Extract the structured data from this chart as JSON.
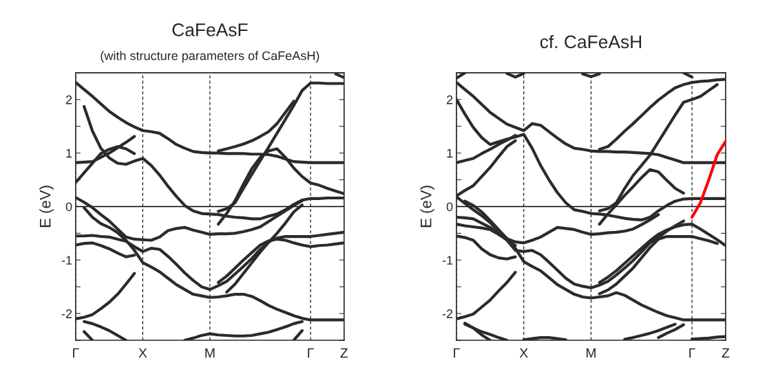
{
  "chart_data": [
    {
      "type": "line",
      "title": "CaFeAsF",
      "subtitle": "(with structure parameters of CaFeAsH)",
      "ylabel": "E (eV)",
      "categories": [
        "Γ",
        null,
        null,
        null,
        null,
        null,
        null,
        null,
        "X",
        null,
        null,
        null,
        null,
        null,
        null,
        null,
        "M",
        null,
        null,
        null,
        null,
        null,
        null,
        null,
        null,
        null,
        null,
        null,
        "Γ",
        null,
        null,
        null,
        "Z"
      ],
      "ylim": [
        -2.5,
        2.5
      ],
      "yticks": [
        {
          "value": -2.5,
          "label": null
        },
        -2,
        {
          "value": -1.5,
          "label": null
        },
        -1,
        {
          "value": -0.5,
          "label": null
        },
        0,
        {
          "value": 0.5,
          "label": null
        },
        1,
        {
          "value": 1.5,
          "label": null
        },
        2,
        {
          "value": 2.5,
          "label": null
        }
      ],
      "grid": "x",
      "ref_lines": [
        {
          "axis": "y",
          "value": 0,
          "line_style": "solid"
        }
      ],
      "series": [
        {
          "color": "#2b2b2b",
          "values": [
            2.32,
            2.19,
            2.06,
            1.92,
            1.78,
            1.67,
            1.57,
            1.49,
            1.42,
            1.4,
            1.37,
            1.27,
            1.16,
            1.09,
            1.03,
            1.01,
            1.0,
            1.0,
            0.99,
            0.99,
            0.99,
            0.98,
            0.98,
            0.97,
            0.94,
            0.89,
            0.84,
            0.83,
            0.82,
            0.82,
            0.82,
            0.82,
            0.82
          ]
        },
        {
          "color": "#2b2b2b",
          "values": [
            null,
            1.87,
            1.41,
            1.09,
            0.91,
            0.81,
            0.79,
            0.85,
            0.9,
            0.77,
            0.59,
            0.38,
            0.19,
            0.02,
            -0.08,
            -0.13,
            -0.14,
            -0.15,
            -0.18,
            -0.2,
            -0.21,
            -0.23,
            -0.23,
            -0.18,
            -0.14,
            -0.06,
            0.04,
            0.12,
            0.15,
            0.15,
            0.16,
            0.16,
            0.16
          ]
        },
        {
          "color": "#2b2b2b",
          "values": [
            0.82,
            0.83,
            0.84,
            0.92,
            1.0,
            1.1,
            1.2,
            1.31,
            null,
            null,
            null,
            null,
            null,
            null,
            null,
            null,
            null,
            null,
            null,
            null,
            null,
            null,
            null,
            null,
            null,
            null,
            null,
            null,
            null,
            null,
            null,
            null,
            null
          ]
        },
        {
          "color": "#2b2b2b",
          "values": [
            0.45,
            0.63,
            0.81,
            0.99,
            1.07,
            1.12,
            1.08,
            0.99,
            null,
            null,
            null,
            null,
            null,
            null,
            null,
            null,
            null,
            null,
            null,
            null,
            null,
            null,
            null,
            null,
            null,
            null,
            null,
            null,
            null,
            null,
            null,
            null,
            null
          ]
        },
        {
          "color": "#2b2b2b",
          "values": [
            null,
            null,
            null,
            null,
            null,
            null,
            null,
            null,
            null,
            null,
            null,
            null,
            null,
            null,
            null,
            null,
            null,
            -0.09,
            -0.04,
            0.07,
            0.34,
            0.6,
            0.86,
            1.11,
            1.37,
            1.63,
            1.89,
            2.17,
            2.31,
            2.31,
            2.3,
            2.3,
            2.3
          ]
        },
        {
          "color": "#2b2b2b",
          "values": [
            null,
            null,
            null,
            null,
            null,
            null,
            null,
            null,
            null,
            null,
            null,
            null,
            null,
            null,
            null,
            null,
            null,
            1.04,
            1.08,
            1.12,
            1.17,
            1.23,
            1.31,
            1.4,
            1.55,
            1.76,
            1.97,
            null,
            null,
            null,
            null,
            null,
            null
          ]
        },
        {
          "color": "#2b2b2b",
          "values": [
            null,
            null,
            null,
            null,
            null,
            null,
            null,
            null,
            null,
            null,
            null,
            null,
            null,
            null,
            null,
            null,
            null,
            -0.33,
            -0.13,
            0.11,
            0.42,
            0.71,
            0.92,
            1.04,
            1.08,
            0.92,
            0.72,
            0.56,
            0.44,
            0.4,
            0.34,
            0.29,
            0.24
          ]
        },
        {
          "color": "#2b2b2b",
          "values": [
            0.17,
            0.08,
            -0.02,
            -0.15,
            -0.27,
            -0.42,
            -0.57,
            -0.61,
            -0.62,
            -0.63,
            -0.57,
            -0.45,
            -0.41,
            -0.39,
            -0.44,
            -0.48,
            -0.52,
            -0.51,
            -0.51,
            -0.5,
            -0.47,
            -0.43,
            -0.38,
            -0.28,
            -0.18,
            -0.08,
            0.02,
            0.11,
            null,
            null,
            null,
            null,
            null
          ]
        },
        {
          "color": "#2b2b2b",
          "values": [
            null,
            -0.02,
            -0.2,
            -0.32,
            -0.39,
            -0.49,
            -0.63,
            -0.82,
            -1.05,
            -1.13,
            -1.22,
            -1.34,
            -1.46,
            -1.55,
            -1.64,
            -1.67,
            -1.7,
            -1.69,
            -1.67,
            -1.64,
            -1.64,
            -1.68,
            -1.76,
            -1.85,
            -1.92,
            -1.98,
            -2.04,
            -2.09,
            -2.12,
            -2.12,
            -2.12,
            -2.12,
            -2.12
          ]
        },
        {
          "color": "#2b2b2b",
          "values": [
            -0.55,
            -0.55,
            -0.54,
            -0.56,
            -0.57,
            -0.61,
            -0.65,
            -0.75,
            -0.84,
            -0.78,
            -0.8,
            -0.93,
            -1.08,
            -1.24,
            -1.38,
            -1.5,
            -1.55,
            -1.48,
            -1.4,
            -1.26,
            -1.12,
            -0.97,
            -0.8,
            -0.66,
            -0.59,
            -0.56,
            -0.56,
            -0.56,
            -0.56,
            -0.54,
            -0.52,
            -0.5,
            -0.48
          ]
        },
        {
          "color": "#2b2b2b",
          "values": [
            -0.72,
            -0.69,
            -0.68,
            -0.73,
            -0.79,
            -0.87,
            -0.94,
            -0.91,
            null,
            null,
            null,
            null,
            null,
            null,
            null,
            null,
            null,
            null,
            null,
            null,
            null,
            null,
            null,
            null,
            null,
            null,
            null,
            null,
            null,
            null,
            null,
            null,
            null
          ]
        },
        {
          "color": "#2b2b2b",
          "values": [
            -2.1,
            -2.07,
            -2.02,
            -1.91,
            -1.79,
            -1.64,
            -1.45,
            -1.25,
            null,
            null,
            null,
            null,
            null,
            null,
            null,
            null,
            null,
            null,
            null,
            null,
            null,
            null,
            null,
            null,
            null,
            null,
            null,
            null,
            null,
            null,
            null,
            null,
            null
          ]
        },
        {
          "color": "#2b2b2b",
          "values": [
            null,
            -2.34,
            -2.5,
            null,
            null,
            null,
            null,
            null,
            null,
            null,
            null,
            null,
            null,
            null,
            null,
            null,
            null,
            null,
            null,
            null,
            null,
            null,
            null,
            null,
            null,
            null,
            null,
            null,
            null,
            null,
            null,
            null,
            null
          ]
        },
        {
          "color": "#2b2b2b",
          "values": [
            null,
            -2.15,
            -2.19,
            -2.25,
            -2.32,
            -2.41,
            -2.5,
            null,
            null,
            null,
            null,
            null,
            null,
            null,
            null,
            null,
            null,
            null,
            null,
            null,
            null,
            null,
            null,
            null,
            null,
            null,
            null,
            null,
            null,
            null,
            null,
            null,
            null
          ]
        },
        {
          "color": "#2b2b2b",
          "values": [
            null,
            null,
            null,
            null,
            null,
            null,
            null,
            null,
            null,
            null,
            null,
            null,
            null,
            null,
            null,
            null,
            null,
            -1.42,
            -1.3,
            -1.15,
            -1.0,
            -0.86,
            -0.72,
            -0.64,
            -0.61,
            -0.63,
            -0.68,
            -0.72,
            -0.75,
            -0.73,
            -0.72,
            -0.7,
            -0.68
          ]
        },
        {
          "color": "#2b2b2b",
          "values": [
            null,
            null,
            null,
            null,
            null,
            null,
            null,
            null,
            null,
            null,
            null,
            null,
            null,
            null,
            null,
            null,
            null,
            null,
            -1.6,
            -1.45,
            -1.25,
            -1.05,
            -0.85,
            -0.67,
            -0.5,
            -0.31,
            -0.1,
            0.03,
            null,
            null,
            null,
            null,
            null
          ]
        },
        {
          "color": "#2b2b2b",
          "values": [
            null,
            null,
            null,
            null,
            null,
            null,
            null,
            null,
            null,
            null,
            null,
            null,
            null,
            -2.5,
            -2.46,
            -2.41,
            -2.38,
            -2.4,
            -2.41,
            -2.42,
            -2.42,
            -2.41,
            -2.38,
            -2.35,
            -2.3,
            -2.25,
            -2.19,
            -2.15,
            null,
            null,
            null,
            null,
            null
          ]
        },
        {
          "color": "#2b2b2b",
          "values": [
            null,
            null,
            null,
            null,
            null,
            null,
            null,
            null,
            null,
            null,
            null,
            null,
            null,
            null,
            null,
            null,
            null,
            null,
            null,
            null,
            null,
            null,
            null,
            null,
            null,
            null,
            -2.5,
            -2.32,
            null,
            null,
            null,
            null,
            null
          ]
        },
        {
          "color": "#2b2b2b",
          "values": [
            null,
            null,
            null,
            null,
            null,
            null,
            null,
            null,
            null,
            null,
            null,
            null,
            null,
            null,
            null,
            null,
            null,
            null,
            null,
            null,
            null,
            null,
            null,
            null,
            null,
            null,
            null,
            null,
            null,
            null,
            null,
            2.48,
            2.41
          ]
        }
      ]
    },
    {
      "type": "line",
      "title": "cf. CaFeAsH",
      "ylabel": "E (eV)",
      "categories": [
        "Γ",
        null,
        null,
        null,
        null,
        null,
        null,
        null,
        "X",
        null,
        null,
        null,
        null,
        null,
        null,
        null,
        "M",
        null,
        null,
        null,
        null,
        null,
        null,
        null,
        null,
        null,
        null,
        null,
        "Γ",
        null,
        null,
        null,
        "Z"
      ],
      "ylim": [
        -2.5,
        2.5
      ],
      "yticks": [
        {
          "value": -2.5,
          "label": null
        },
        -2,
        {
          "value": -1.5,
          "label": null
        },
        -1,
        {
          "value": -0.5,
          "label": null
        },
        0,
        {
          "value": 0.5,
          "label": null
        },
        1,
        {
          "value": 1.5,
          "label": null
        },
        2,
        {
          "value": 2.5,
          "label": null
        }
      ],
      "grid": "x",
      "ref_lines": [
        {
          "axis": "y",
          "value": 0,
          "line_style": "solid"
        }
      ],
      "series": [
        {
          "color": "#2b2b2b",
          "values": [
            2.32,
            2.19,
            2.06,
            1.91,
            1.76,
            1.65,
            1.54,
            1.48,
            1.42,
            1.55,
            1.52,
            1.4,
            1.28,
            1.17,
            1.09,
            1.07,
            1.04,
            1.03,
            1.03,
            1.02,
            1.02,
            1.01,
            1.0,
            0.99,
            0.97,
            0.92,
            0.87,
            0.82,
            0.82,
            0.82,
            0.82,
            0.82,
            0.82
          ]
        },
        {
          "color": "#2b2b2b",
          "values": [
            2.0,
            1.73,
            1.48,
            1.29,
            1.16,
            1.21,
            1.26,
            1.3,
            1.35,
            1.09,
            0.77,
            0.5,
            0.26,
            0.07,
            -0.06,
            -0.09,
            -0.13,
            -0.14,
            -0.16,
            -0.19,
            -0.22,
            -0.24,
            -0.25,
            -0.2,
            -0.08,
            0.02,
            0.1,
            0.14,
            0.15,
            0.15,
            0.15,
            0.15,
            0.15
          ]
        },
        {
          "color": "#2b2b2b",
          "values": [
            0.82,
            0.86,
            0.9,
            0.99,
            1.07,
            1.16,
            1.24,
            1.33,
            null,
            null,
            null,
            null,
            null,
            null,
            null,
            null,
            null,
            null,
            null,
            null,
            null,
            null,
            null,
            null,
            null,
            null,
            null,
            null,
            null,
            null,
            null,
            null,
            null
          ]
        },
        {
          "color": "#2b2b2b",
          "values": [
            0.2,
            0.3,
            0.39,
            0.56,
            0.73,
            0.93,
            1.12,
            1.23,
            null,
            null,
            null,
            null,
            null,
            null,
            null,
            null,
            null,
            null,
            null,
            null,
            null,
            null,
            null,
            null,
            null,
            null,
            null,
            null,
            null,
            null,
            null,
            null,
            null
          ]
        },
        {
          "color": "#2b2b2b",
          "values": [
            0.18,
            0.06,
            -0.06,
            -0.17,
            -0.3,
            -0.46,
            -0.6,
            -0.66,
            -0.68,
            -0.63,
            -0.57,
            -0.48,
            -0.39,
            -0.41,
            -0.43,
            -0.48,
            -0.52,
            -0.51,
            -0.49,
            -0.48,
            -0.46,
            -0.42,
            -0.34,
            -0.25,
            -0.15,
            null,
            null,
            null,
            null,
            null,
            null,
            null,
            null
          ]
        },
        {
          "color": "#2b2b2b",
          "values": [
            null,
            0.1,
            0.02,
            -0.1,
            -0.26,
            -0.43,
            -0.6,
            -0.78,
            -1.03,
            -1.12,
            -1.2,
            -1.33,
            -1.46,
            -1.55,
            -1.64,
            -1.69,
            -1.71,
            -1.69,
            -1.67,
            -1.61,
            -1.66,
            -1.75,
            -1.84,
            -1.91,
            -1.98,
            -2.04,
            -2.08,
            -2.12,
            -2.12,
            -2.12,
            -2.12,
            -2.12,
            -2.12
          ]
        },
        {
          "color": "#2b2b2b",
          "values": [
            -0.2,
            -0.21,
            -0.23,
            -0.31,
            -0.39,
            -0.5,
            -0.63,
            -0.82,
            -0.84,
            -0.82,
            -0.9,
            -1.04,
            -1.19,
            -1.34,
            -1.45,
            -1.49,
            -1.52,
            -1.47,
            -1.4,
            -1.28,
            -1.15,
            -1.01,
            -0.85,
            -0.68,
            -0.58,
            -0.46,
            -0.36,
            -0.27,
            null,
            null,
            null,
            null,
            null
          ]
        },
        {
          "color": "#2b2b2b",
          "values": [
            null,
            null,
            null,
            null,
            null,
            null,
            null,
            null,
            null,
            null,
            null,
            null,
            null,
            null,
            null,
            null,
            null,
            -1.42,
            -1.32,
            -1.2,
            -1.06,
            -0.92,
            -0.78,
            -0.64,
            -0.52,
            -0.44,
            -0.38,
            -0.34,
            -0.33,
            -0.42,
            -0.52,
            -0.62,
            -0.73
          ]
        },
        {
          "color": "#2b2b2b",
          "values": [
            null,
            null,
            null,
            null,
            null,
            null,
            null,
            null,
            null,
            null,
            null,
            null,
            null,
            null,
            null,
            null,
            null,
            -1.63,
            -1.56,
            -1.45,
            -1.3,
            -1.15,
            -0.96,
            -0.77,
            -0.61,
            -0.56,
            -0.56,
            -0.56,
            -0.56,
            -0.6,
            -0.64,
            -0.69,
            null
          ]
        },
        {
          "color": "#2b2b2b",
          "values": [
            -0.33,
            -0.36,
            -0.38,
            -0.4,
            -0.43,
            -0.52,
            -0.62,
            -0.73,
            null,
            null,
            null,
            null,
            null,
            null,
            null,
            null,
            null,
            null,
            null,
            null,
            null,
            null,
            null,
            null,
            null,
            null,
            null,
            null,
            null,
            null,
            null,
            null,
            null
          ]
        },
        {
          "color": "#2b2b2b",
          "values": [
            -0.55,
            -0.58,
            -0.63,
            -0.79,
            -0.9,
            -0.96,
            -0.98,
            -0.94,
            null,
            null,
            null,
            null,
            null,
            null,
            null,
            null,
            null,
            null,
            null,
            null,
            null,
            null,
            null,
            null,
            null,
            null,
            null,
            null,
            null,
            null,
            null,
            null,
            null
          ]
        },
        {
          "color": "#2b2b2b",
          "values": [
            -2.1,
            -2.06,
            -2.01,
            -1.88,
            -1.75,
            -1.58,
            -1.42,
            -1.23,
            null,
            null,
            null,
            null,
            null,
            null,
            null,
            null,
            null,
            null,
            null,
            null,
            null,
            null,
            null,
            null,
            null,
            null,
            null,
            null,
            null,
            null,
            null,
            null,
            null
          ]
        },
        {
          "color": "#2b2b2b",
          "values": [
            null,
            -2.18,
            -2.27,
            -2.4,
            -2.5,
            null,
            null,
            null,
            null,
            null,
            null,
            null,
            null,
            null,
            null,
            null,
            null,
            null,
            null,
            null,
            null,
            null,
            null,
            null,
            null,
            null,
            null,
            null,
            null,
            null,
            null,
            null,
            null
          ]
        },
        {
          "color": "#2b2b2b",
          "values": [
            null,
            -2.2,
            -2.27,
            -2.34,
            -2.39,
            -2.45,
            -2.5,
            null,
            null,
            null,
            null,
            null,
            null,
            null,
            null,
            null,
            null,
            null,
            null,
            null,
            null,
            null,
            null,
            null,
            null,
            null,
            null,
            null,
            null,
            null,
            null,
            null,
            null
          ]
        },
        {
          "color": "#2b2b2b",
          "values": [
            null,
            null,
            null,
            null,
            null,
            null,
            null,
            null,
            -2.49,
            -2.47,
            -2.45,
            -2.45,
            -2.47,
            -2.49,
            null,
            null,
            null,
            null,
            null,
            null,
            null,
            null,
            null,
            null,
            null,
            null,
            null,
            null,
            null,
            null,
            null,
            null,
            null
          ]
        },
        {
          "color": "#2b2b2b",
          "values": [
            null,
            null,
            null,
            null,
            null,
            null,
            null,
            null,
            null,
            null,
            null,
            null,
            null,
            null,
            null,
            null,
            null,
            null,
            null,
            null,
            -2.48,
            -2.45,
            -2.41,
            -2.37,
            -2.32,
            -2.26,
            -2.2,
            null,
            null,
            null,
            null,
            null,
            null
          ]
        },
        {
          "color": "#2b2b2b",
          "values": [
            null,
            null,
            null,
            null,
            null,
            null,
            null,
            null,
            null,
            null,
            null,
            null,
            null,
            null,
            null,
            null,
            null,
            null,
            null,
            null,
            null,
            null,
            null,
            null,
            -2.45,
            -2.37,
            -2.3,
            -2.21,
            null,
            null,
            null,
            null,
            null
          ]
        },
        {
          "color": "#2b2b2b",
          "values": [
            null,
            null,
            null,
            null,
            null,
            null,
            null,
            null,
            null,
            null,
            null,
            null,
            null,
            null,
            null,
            null,
            null,
            null,
            null,
            null,
            null,
            null,
            null,
            null,
            null,
            null,
            null,
            null,
            -2.48,
            -2.47,
            -2.46,
            -2.44,
            -2.43
          ]
        },
        {
          "color": "#2b2b2b",
          "values": [
            null,
            null,
            null,
            null,
            null,
            null,
            2.49,
            2.42,
            2.49,
            null,
            null,
            null,
            null,
            null,
            null,
            null,
            null,
            null,
            null,
            null,
            null,
            null,
            null,
            null,
            null,
            null,
            null,
            null,
            null,
            null,
            null,
            null,
            null
          ]
        },
        {
          "color": "#2b2b2b",
          "values": [
            null,
            null,
            null,
            null,
            null,
            null,
            null,
            null,
            null,
            null,
            null,
            null,
            null,
            null,
            null,
            2.48,
            2.43,
            2.48,
            null,
            null,
            null,
            null,
            null,
            null,
            null,
            null,
            null,
            null,
            null,
            null,
            null,
            null,
            null
          ]
        },
        {
          "color": "#2b2b2b",
          "values": [
            2.4,
            2.5,
            null,
            null,
            null,
            null,
            null,
            null,
            null,
            null,
            null,
            null,
            null,
            null,
            null,
            null,
            null,
            null,
            null,
            null,
            null,
            null,
            null,
            null,
            null,
            null,
            null,
            null,
            null,
            null,
            null,
            null,
            null
          ]
        },
        {
          "color": "#2b2b2b",
          "values": [
            null,
            null,
            null,
            null,
            null,
            null,
            null,
            null,
            null,
            null,
            null,
            null,
            null,
            null,
            null,
            null,
            null,
            1.07,
            1.12,
            1.26,
            1.41,
            1.55,
            1.7,
            1.85,
            1.99,
            2.11,
            2.22,
            2.28,
            2.32,
            2.34,
            2.35,
            2.37,
            2.38
          ]
        },
        {
          "color": "#2b2b2b",
          "values": [
            null,
            null,
            null,
            null,
            null,
            null,
            null,
            null,
            null,
            null,
            null,
            null,
            null,
            null,
            null,
            null,
            null,
            -0.08,
            -0.04,
            0.07,
            0.34,
            0.58,
            0.77,
            0.96,
            1.21,
            1.46,
            1.71,
            1.95,
            2.0,
            2.06,
            2.17,
            2.28,
            null
          ]
        },
        {
          "color": "#2b2b2b",
          "values": [
            null,
            null,
            null,
            null,
            null,
            null,
            null,
            null,
            null,
            null,
            null,
            null,
            null,
            null,
            null,
            null,
            null,
            -0.33,
            -0.14,
            0.03,
            0.21,
            0.37,
            0.54,
            0.69,
            0.65,
            0.49,
            0.34,
            0.25,
            null,
            null,
            null,
            null,
            null
          ]
        },
        {
          "color": "#2b2b2b",
          "values": [
            null,
            null,
            null,
            null,
            null,
            null,
            null,
            null,
            null,
            null,
            null,
            null,
            null,
            null,
            null,
            null,
            null,
            null,
            null,
            null,
            null,
            null,
            null,
            null,
            null,
            null,
            null,
            2.5,
            2.42,
            null,
            null,
            null,
            null
          ]
        },
        {
          "color": "#ff0000",
          "values": [
            null,
            null,
            null,
            null,
            null,
            null,
            null,
            null,
            null,
            null,
            null,
            null,
            null,
            null,
            null,
            null,
            null,
            null,
            null,
            null,
            null,
            null,
            null,
            null,
            null,
            null,
            null,
            null,
            -0.2,
            0.07,
            0.5,
            0.97,
            1.22
          ]
        }
      ]
    }
  ]
}
